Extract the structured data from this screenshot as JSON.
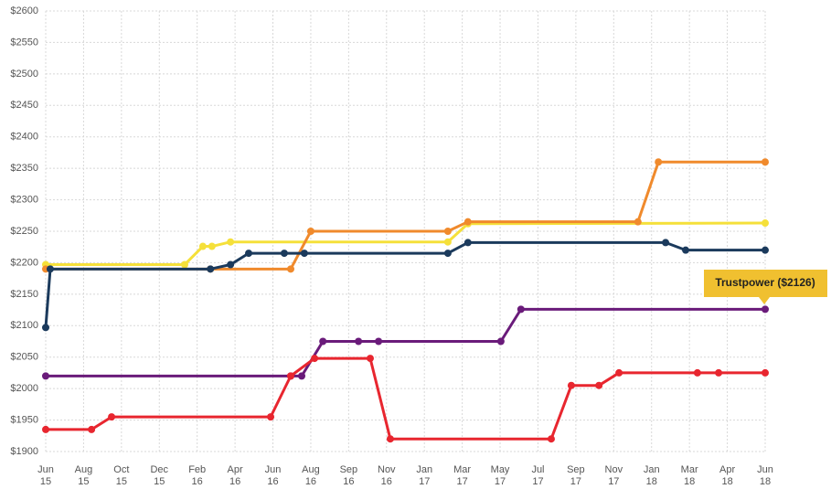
{
  "chart_data": {
    "type": "line",
    "annotation": "Trustpower ($2126)",
    "xlim": [
      0,
      19
    ],
    "xticks": [
      {
        "value": 0,
        "label": "Jun 15"
      },
      {
        "value": 1,
        "label": "Aug 15"
      },
      {
        "value": 2,
        "label": "Oct 15"
      },
      {
        "value": 3,
        "label": "Dec 15"
      },
      {
        "value": 4,
        "label": "Feb 16"
      },
      {
        "value": 5,
        "label": "Apr 16"
      },
      {
        "value": 6,
        "label": "Jun 16"
      },
      {
        "value": 7,
        "label": "Aug 16"
      },
      {
        "value": 8,
        "label": "Sep 16"
      },
      {
        "value": 9,
        "label": "Nov 16"
      },
      {
        "value": 10,
        "label": "Jan 17"
      },
      {
        "value": 11,
        "label": "Mar 17"
      },
      {
        "value": 12,
        "label": "May 17"
      },
      {
        "value": 13,
        "label": "Jul 17"
      },
      {
        "value": 14,
        "label": "Sep 17"
      },
      {
        "value": 15,
        "label": "Nov 17"
      },
      {
        "value": 16,
        "label": "Jan 18"
      },
      {
        "value": 17,
        "label": "Mar 18"
      },
      {
        "value": 18,
        "label": "Apr 18"
      },
      {
        "value": 19,
        "label": "Jun 18"
      }
    ],
    "ylim": [
      1900,
      2600
    ],
    "yticks": [
      {
        "value": 1900,
        "label": "$1900"
      },
      {
        "value": 1950,
        "label": "$1950"
      },
      {
        "value": 2000,
        "label": "$2000"
      },
      {
        "value": 2050,
        "label": "$2050"
      },
      {
        "value": 2100,
        "label": "$2100"
      },
      {
        "value": 2150,
        "label": "$2150"
      },
      {
        "value": 2200,
        "label": "$2200"
      },
      {
        "value": 2250,
        "label": "$2250"
      },
      {
        "value": 2300,
        "label": "$2300"
      },
      {
        "value": 2350,
        "label": "$2350"
      },
      {
        "value": 2400,
        "label": "$2400"
      },
      {
        "value": 2450,
        "label": "$2450"
      },
      {
        "value": 2500,
        "label": "$2500"
      },
      {
        "value": 2550,
        "label": "$2550"
      },
      {
        "value": 2600,
        "label": "$2600"
      }
    ],
    "grid": true,
    "series": [
      {
        "color": "#f5e03a",
        "x": [
          0,
          3.67,
          4.15,
          4.39,
          4.88,
          10.62,
          11.15,
          19
        ],
        "values": [
          2197,
          2197,
          2226,
          2226,
          2233,
          2233,
          2262,
          2263
        ]
      },
      {
        "color": "#f08a2c",
        "x": [
          0,
          4.35,
          6.47,
          7,
          10.62,
          11.15,
          15.64,
          16.18,
          19
        ],
        "values": [
          2190,
          2190,
          2190,
          2250,
          2250,
          2265,
          2265,
          2360,
          2360
        ]
      },
      {
        "color": "#1b3a5c",
        "x": [
          0,
          0.12,
          4.35,
          4.88,
          5.36,
          6.3,
          6.83,
          10.62,
          11.15,
          16.37,
          16.9,
          19
        ],
        "values": [
          2097,
          2190,
          2190,
          2197,
          2215,
          2215,
          2215,
          2215,
          2232,
          2232,
          2220,
          2220
        ]
      },
      {
        "color": "#6a1b7a",
        "x": [
          0,
          6.47,
          6.76,
          7.32,
          8.26,
          8.79,
          12.02,
          12.55,
          19
        ],
        "values": [
          2020,
          2020,
          2020,
          2075,
          2075,
          2075,
          2075,
          2126,
          2126
        ]
      },
      {
        "color": "#e8262f",
        "x": [
          0,
          1.21,
          1.74,
          5.94,
          6.47,
          7.1,
          8.57,
          9.1,
          13.35,
          13.88,
          14.61,
          15.14,
          17.21,
          17.77,
          19
        ],
        "values": [
          1935,
          1935,
          1955,
          1955,
          2020,
          2048,
          2048,
          1920,
          1920,
          2005,
          2005,
          2025,
          2025,
          2025,
          2025
        ]
      }
    ]
  }
}
